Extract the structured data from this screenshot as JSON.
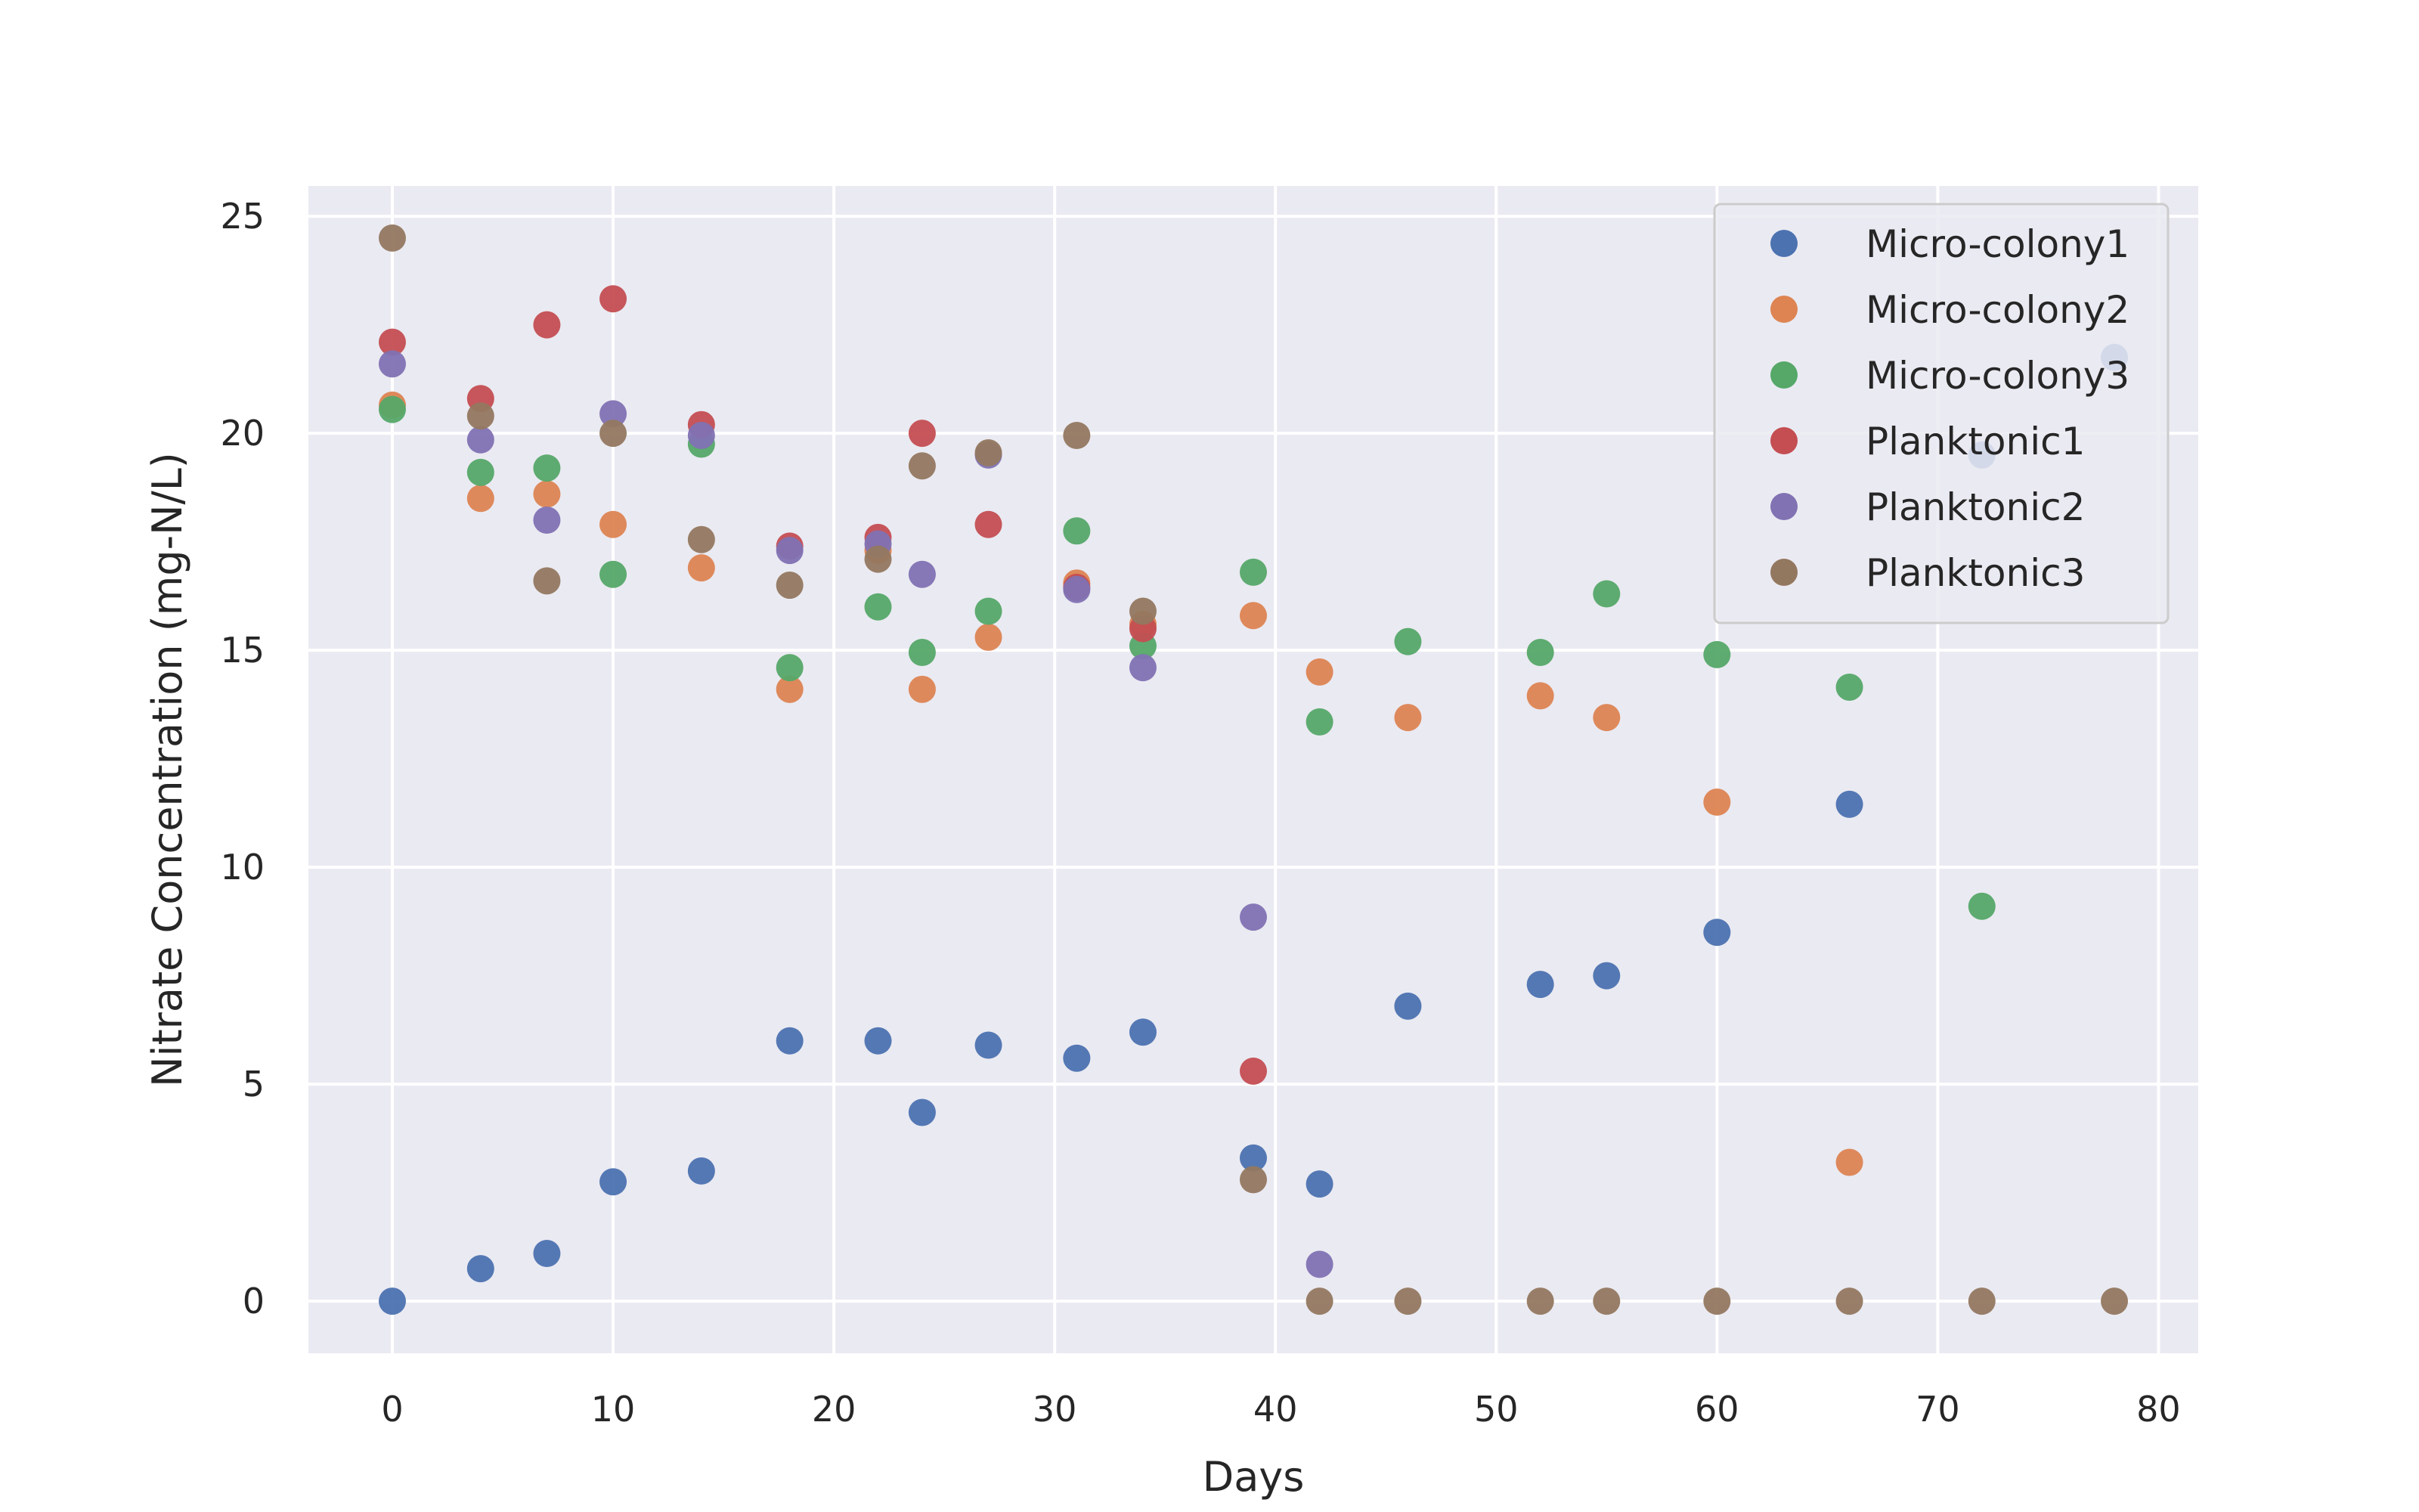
{
  "chart_data": {
    "type": "scatter",
    "title": "",
    "xlabel": "Days",
    "ylabel": "Nitrate Concentration (mg-N/L)",
    "xlim": [
      -3.8,
      81.8
    ],
    "ylim": [
      -1.2,
      25.7
    ],
    "xticks": [
      0,
      10,
      20,
      30,
      40,
      50,
      60,
      70,
      80
    ],
    "yticks": [
      0,
      5,
      10,
      15,
      20,
      25
    ],
    "grid": true,
    "legend_position": "top-right",
    "series": [
      {
        "name": "Micro-colony1",
        "color": "#4c72b0",
        "points": [
          [
            0,
            0
          ],
          [
            4,
            0.75
          ],
          [
            7,
            1.1
          ],
          [
            10,
            2.75
          ],
          [
            14,
            3.0
          ],
          [
            18,
            6.0
          ],
          [
            22,
            6.0
          ],
          [
            24,
            4.35
          ],
          [
            27,
            5.9
          ],
          [
            31,
            5.6
          ],
          [
            34,
            6.2
          ],
          [
            39,
            3.3
          ],
          [
            42,
            2.7
          ],
          [
            46,
            6.8
          ],
          [
            52,
            7.3
          ],
          [
            55,
            7.5
          ],
          [
            60,
            8.5
          ],
          [
            66,
            11.45
          ],
          [
            72,
            19.5
          ],
          [
            78,
            21.75
          ]
        ]
      },
      {
        "name": "Micro-colony2",
        "color": "#dd8452",
        "points": [
          [
            0,
            20.65
          ],
          [
            4,
            18.5
          ],
          [
            7,
            18.6
          ],
          [
            10,
            17.9
          ],
          [
            14,
            16.9
          ],
          [
            18,
            14.1
          ],
          [
            22,
            17.3
          ],
          [
            24,
            14.1
          ],
          [
            27,
            15.3
          ],
          [
            31,
            16.55
          ],
          [
            34,
            15.6
          ],
          [
            39,
            15.8
          ],
          [
            42,
            14.5
          ],
          [
            46,
            13.45
          ],
          [
            52,
            13.95
          ],
          [
            55,
            13.45
          ],
          [
            60,
            11.5
          ],
          [
            66,
            3.2
          ]
        ]
      },
      {
        "name": "Micro-colony3",
        "color": "#55a868",
        "points": [
          [
            0,
            20.55
          ],
          [
            4,
            19.1
          ],
          [
            7,
            19.2
          ],
          [
            10,
            16.75
          ],
          [
            14,
            19.75
          ],
          [
            18,
            14.6
          ],
          [
            22,
            16.0
          ],
          [
            24,
            14.95
          ],
          [
            27,
            15.9
          ],
          [
            31,
            17.75
          ],
          [
            34,
            15.1
          ],
          [
            39,
            16.8
          ],
          [
            42,
            13.35
          ],
          [
            46,
            15.2
          ],
          [
            52,
            14.95
          ],
          [
            55,
            16.3
          ],
          [
            60,
            14.9
          ],
          [
            66,
            14.15
          ],
          [
            72,
            9.1
          ]
        ]
      },
      {
        "name": "Planktonic1",
        "color": "#c44e52",
        "points": [
          [
            0,
            22.1
          ],
          [
            4,
            20.8
          ],
          [
            7,
            22.5
          ],
          [
            10,
            23.1
          ],
          [
            14,
            20.2
          ],
          [
            18,
            17.4
          ],
          [
            22,
            17.6
          ],
          [
            24,
            20.0
          ],
          [
            27,
            17.9
          ],
          [
            31,
            16.45
          ],
          [
            34,
            15.5
          ],
          [
            39,
            5.3
          ]
        ]
      },
      {
        "name": "Planktonic2",
        "color": "#8172b3",
        "points": [
          [
            0,
            21.6
          ],
          [
            4,
            19.85
          ],
          [
            7,
            18.0
          ],
          [
            10,
            20.45
          ],
          [
            14,
            19.95
          ],
          [
            18,
            17.3
          ],
          [
            22,
            17.45
          ],
          [
            24,
            16.75
          ],
          [
            27,
            19.5
          ],
          [
            31,
            16.4
          ],
          [
            34,
            14.6
          ],
          [
            39,
            8.85
          ],
          [
            42,
            0.85
          ]
        ]
      },
      {
        "name": "Planktonic3",
        "color": "#937860",
        "points": [
          [
            0,
            24.5
          ],
          [
            4,
            20.4
          ],
          [
            7,
            16.6
          ],
          [
            10,
            20.0
          ],
          [
            14,
            17.55
          ],
          [
            18,
            16.5
          ],
          [
            22,
            17.1
          ],
          [
            24,
            19.25
          ],
          [
            27,
            19.55
          ],
          [
            31,
            19.95
          ],
          [
            34,
            15.9
          ],
          [
            39,
            2.8
          ],
          [
            42,
            0
          ],
          [
            46,
            0
          ],
          [
            52,
            0
          ],
          [
            55,
            0
          ],
          [
            60,
            0
          ],
          [
            66,
            0
          ],
          [
            72,
            0
          ],
          [
            78,
            0
          ]
        ]
      }
    ]
  },
  "style": {
    "plot_background": "#eaeaf2",
    "grid_color": "#ffffff",
    "text_color": "#262626"
  }
}
